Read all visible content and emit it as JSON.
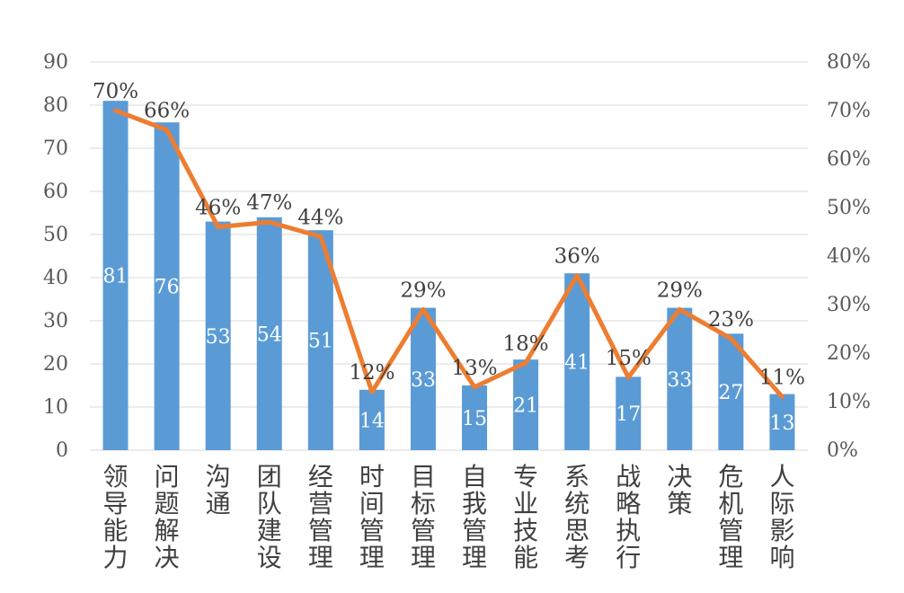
{
  "chart_data": {
    "type": "bar",
    "categories": [
      "领导能力",
      "问题解决",
      "沟通",
      "团队建设",
      "经营管理",
      "时间管理",
      "目标管理",
      "自我管理",
      "专业技能",
      "系统思考",
      "战略执行",
      "决策",
      "危机管理",
      "人际影响"
    ],
    "series": [
      {
        "type": "bar",
        "axis": "left",
        "values": [
          81,
          76,
          53,
          54,
          51,
          14,
          33,
          15,
          21,
          41,
          17,
          33,
          27,
          13
        ],
        "labels": [
          "81",
          "76",
          "53",
          "54",
          "51",
          "14",
          "33",
          "15",
          "21",
          "41",
          "17",
          "33",
          "27",
          "13"
        ]
      },
      {
        "type": "line",
        "axis": "right",
        "values": [
          70,
          66,
          46,
          47,
          44,
          12,
          29,
          13,
          18,
          36,
          15,
          29,
          23,
          11
        ],
        "labels": [
          "70%",
          "66%",
          "46%",
          "47%",
          "44%",
          "12%",
          "29%",
          "13%",
          "18%",
          "36%",
          "15%",
          "29%",
          "23%",
          "11%"
        ]
      }
    ],
    "y_left": {
      "min": 0,
      "max": 90,
      "ticks": [
        "0",
        "10",
        "20",
        "30",
        "40",
        "50",
        "60",
        "70",
        "80",
        "90"
      ]
    },
    "y_right": {
      "min": 0,
      "max": 80,
      "ticks": [
        "0%",
        "10%",
        "20%",
        "30%",
        "40%",
        "50%",
        "60%",
        "70%",
        "80%"
      ]
    },
    "grid": true,
    "legend": "none",
    "colors": {
      "bar": "#5b9bd5",
      "line": "#ed7d31",
      "grid": "#d9d9d9"
    }
  }
}
